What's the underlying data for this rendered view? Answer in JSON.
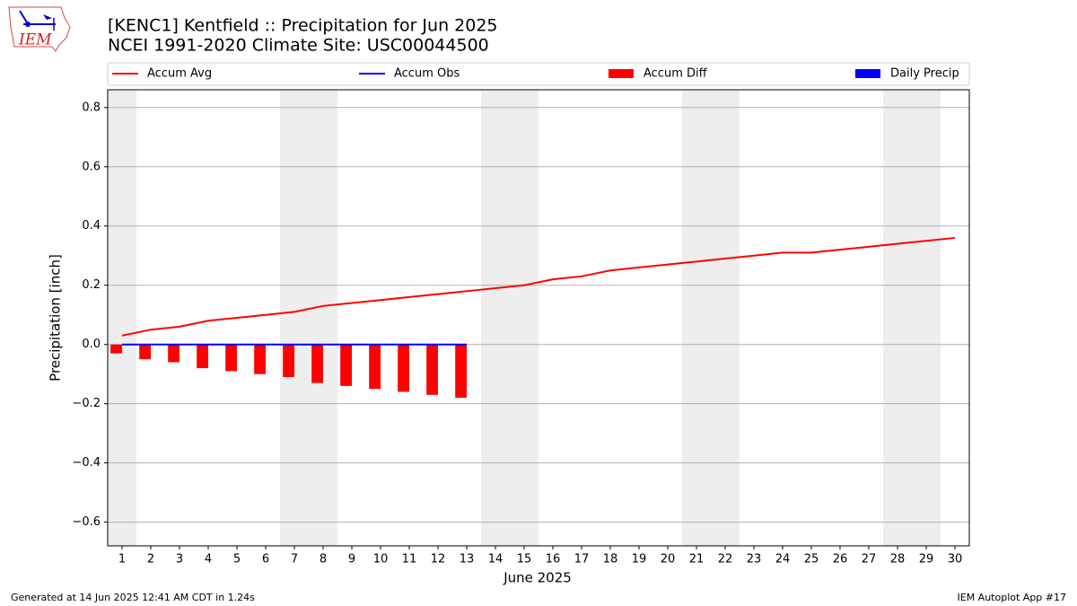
{
  "chart_data": {
    "type": "line",
    "title": "[KENC1] Kentfield :: Precipitation for Jun 2025",
    "subtitle": "NCEI 1991-2020 Climate Site: USC00044500",
    "xlabel": "June 2025",
    "ylabel": "Precipitation [inch]",
    "x": [
      1,
      2,
      3,
      4,
      5,
      6,
      7,
      8,
      9,
      10,
      11,
      12,
      13,
      14,
      15,
      16,
      17,
      18,
      19,
      20,
      21,
      22,
      23,
      24,
      25,
      26,
      27,
      28,
      29,
      30
    ],
    "xlim": [
      0.5,
      30.5
    ],
    "xticks": [
      1,
      2,
      3,
      4,
      5,
      6,
      7,
      8,
      9,
      10,
      11,
      12,
      13,
      14,
      15,
      16,
      17,
      18,
      19,
      20,
      21,
      22,
      23,
      24,
      25,
      26,
      27,
      28,
      29,
      30
    ],
    "ylim": [
      -0.68,
      0.86
    ],
    "yticks": [
      {
        "value": -0.6,
        "label": "−0.6"
      },
      {
        "value": -0.4,
        "label": "−0.4"
      },
      {
        "value": -0.2,
        "label": "−0.2"
      },
      {
        "value": 0,
        "label": "0.0"
      },
      0.2,
      0.4,
      0.6,
      0.8
    ],
    "grid": true,
    "shaded_days": [
      1,
      7,
      8,
      14,
      15,
      21,
      22,
      28,
      29
    ],
    "shade_color": "#eeeeee",
    "legend": "top",
    "series": [
      {
        "name": "Accum Avg",
        "kind": "line",
        "color": "#ff0000",
        "values": [
          0.03,
          0.05,
          0.06,
          0.08,
          0.09,
          0.1,
          0.11,
          0.13,
          0.14,
          0.15,
          0.16,
          0.17,
          0.18,
          0.19,
          0.2,
          0.22,
          0.23,
          0.25,
          0.26,
          0.27,
          0.28,
          0.29,
          0.3,
          0.31,
          0.31,
          0.32,
          0.33,
          0.34,
          0.35,
          0.36
        ]
      },
      {
        "name": "Accum Obs",
        "kind": "line",
        "color": "#0000ff",
        "values": [
          0,
          0,
          0,
          0,
          0,
          0,
          0,
          0,
          0,
          0,
          0,
          0,
          0,
          null,
          null,
          null,
          null,
          null,
          null,
          null,
          null,
          null,
          null,
          null,
          null,
          null,
          null,
          null,
          null,
          null
        ]
      },
      {
        "name": "Accum Diff",
        "kind": "bar",
        "color": "#ff0000",
        "values": [
          -0.03,
          -0.05,
          -0.06,
          -0.08,
          -0.09,
          -0.1,
          -0.11,
          -0.13,
          -0.14,
          -0.15,
          -0.16,
          -0.17,
          -0.18,
          null,
          null,
          null,
          null,
          null,
          null,
          null,
          null,
          null,
          null,
          null,
          null,
          null,
          null,
          null,
          null,
          null
        ]
      },
      {
        "name": "Daily Precip",
        "kind": "bar",
        "color": "#0000ff",
        "values": [
          0,
          0,
          0,
          0,
          0,
          0,
          0,
          0,
          0,
          0,
          0,
          0,
          0,
          null,
          null,
          null,
          null,
          null,
          null,
          null,
          null,
          null,
          null,
          null,
          null,
          null,
          null,
          null,
          null,
          null
        ]
      }
    ]
  },
  "logo_text": "IEM",
  "footer_left": "Generated at 14 Jun 2025 12:41 AM CDT in 1.24s",
  "footer_right": "IEM Autoplot App #17"
}
